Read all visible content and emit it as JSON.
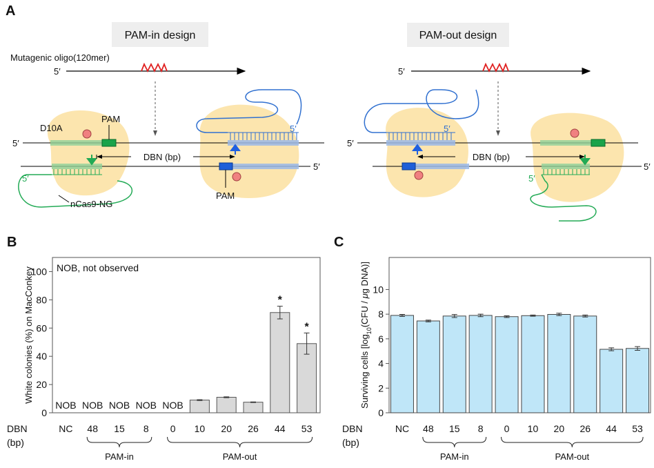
{
  "panel_a": {
    "label": "A",
    "pam_in": {
      "title": "PAM-in design",
      "oligo_label": "Mutagenic oligo(120mer)",
      "prime": "5′",
      "mutation_label": "D10A",
      "pam_top": "PAM",
      "distance": "DBN (bp)",
      "pam_bottom": "PAM",
      "enzyme": "nCas9-NG"
    },
    "pam_out": {
      "title": "PAM-out design",
      "prime": "5′",
      "distance": "DBN (bp)"
    }
  },
  "chart_data": [
    {
      "type": "bar",
      "panel": "B",
      "y_label": "White colonies (%) on MacConkey",
      "note": "NOB, not observed",
      "x_label": [
        "DBN",
        "(bp)"
      ],
      "categories": [
        "NC",
        "48",
        "15",
        "8",
        "0",
        "10",
        "20",
        "26",
        "44",
        "53"
      ],
      "values": [
        null,
        null,
        null,
        null,
        null,
        9,
        11,
        7.5,
        71,
        49
      ],
      "errors": [
        null,
        null,
        null,
        null,
        null,
        0.3,
        0.3,
        0.2,
        4.5,
        7.5
      ],
      "value_labels": [
        "NOB",
        "NOB",
        "NOB",
        "NOB",
        "NOB",
        null,
        null,
        null,
        null,
        null
      ],
      "value_annotations": [
        null,
        null,
        null,
        null,
        null,
        null,
        null,
        null,
        "*",
        "*"
      ],
      "groups": [
        {
          "label": "PAM-in"
        },
        {
          "label": "PAM-out"
        }
      ],
      "color": "#d9d9d9",
      "ylim": [
        0,
        110
      ],
      "yticks": [
        0,
        20,
        40,
        60,
        80,
        100
      ],
      "grid": false
    },
    {
      "type": "bar",
      "panel": "C",
      "y_label": [
        "Surviving cells [log",
        "10",
        "(CFU / ",
        "μ",
        "g DNA)]"
      ],
      "x_label": [
        "DBN",
        "(bp)"
      ],
      "categories": [
        "NC",
        "48",
        "15",
        "8",
        "0",
        "10",
        "20",
        "26",
        "44",
        "53"
      ],
      "values": [
        7.9,
        7.45,
        7.85,
        7.9,
        7.8,
        7.88,
        7.98,
        7.85,
        5.15,
        5.22
      ],
      "errors": [
        0.08,
        0.07,
        0.12,
        0.1,
        0.07,
        0.05,
        0.1,
        0.08,
        0.12,
        0.15
      ],
      "groups": [
        {
          "label": "PAM-in"
        },
        {
          "label": "PAM-out"
        }
      ],
      "color": "#bfe6f8",
      "ylim": [
        0,
        12.6
      ],
      "yticks": [
        0,
        2,
        4,
        6,
        8,
        10
      ],
      "grid": false
    }
  ]
}
